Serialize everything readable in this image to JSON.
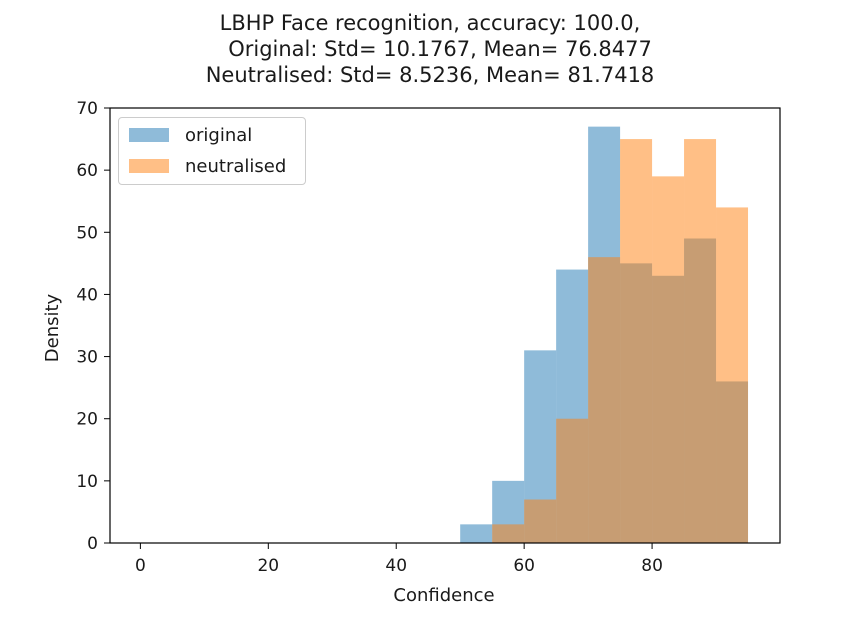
{
  "chart_data": {
    "type": "histogram",
    "title_lines": [
      "LBHP Face recognition, accuracy: 100.0,",
      "   Original: Std= 10.1767, Mean= 76.8477",
      "Neutralised: Std= 8.5236, Mean= 81.7418"
    ],
    "xlabel": "Confidence",
    "ylabel": "Density",
    "xlim": [
      -4.75,
      100
    ],
    "ylim": [
      0,
      70
    ],
    "xticks": [
      0,
      20,
      40,
      60,
      80
    ],
    "yticks": [
      0,
      10,
      20,
      30,
      40,
      50,
      60,
      70
    ],
    "bin_edges": [
      50,
      55,
      60,
      65,
      70,
      75,
      80,
      85,
      90,
      95
    ],
    "series": [
      {
        "name": "original",
        "color": "#1f77b4",
        "alpha": 0.5,
        "values": [
          3,
          10,
          31,
          44,
          67,
          45,
          43,
          49,
          26
        ]
      },
      {
        "name": "neutralised",
        "color": "#ff7f0e",
        "alpha": 0.5,
        "values": [
          0,
          3,
          7,
          20,
          46,
          65,
          59,
          65,
          54
        ]
      }
    ],
    "legend_position": "top-left"
  }
}
